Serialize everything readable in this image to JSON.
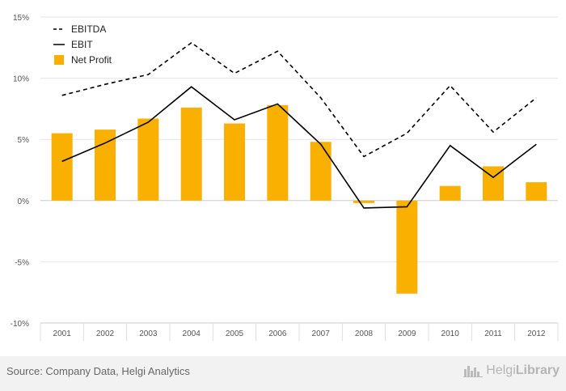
{
  "chart_data": {
    "type": "bar",
    "categories": [
      "2001",
      "2002",
      "2003",
      "2004",
      "2005",
      "2006",
      "2007",
      "2008",
      "2009",
      "2010",
      "2011",
      "2012"
    ],
    "ylim": [
      -10,
      15
    ],
    "yticks": [
      -10,
      -5,
      0,
      5,
      10,
      15
    ],
    "y_tick_format": "percent",
    "legend_position": "top-left",
    "series": [
      {
        "name": "EBITDA",
        "type": "line",
        "style": "dashed",
        "color": "#000000",
        "values": [
          8.6,
          9.5,
          10.3,
          12.9,
          10.4,
          12.2,
          8.4,
          3.6,
          5.5,
          9.4,
          5.6,
          8.4
        ]
      },
      {
        "name": "EBIT",
        "type": "line",
        "style": "solid",
        "color": "#000000",
        "values": [
          3.2,
          4.7,
          6.4,
          9.3,
          6.6,
          7.9,
          4.6,
          -0.6,
          -0.5,
          4.5,
          1.9,
          4.6
        ]
      },
      {
        "name": "Net Profit",
        "type": "bar",
        "color": "#f9b000",
        "values": [
          5.5,
          5.8,
          6.7,
          7.6,
          6.3,
          7.8,
          4.8,
          -0.2,
          -7.6,
          1.2,
          2.8,
          1.5
        ]
      }
    ]
  },
  "footer": {
    "source": "Source: Company Data, Helgi Analytics",
    "brand_prefix": "Helgi",
    "brand_suffix": "Library",
    "brand_icon": "city-skyline-icon"
  }
}
